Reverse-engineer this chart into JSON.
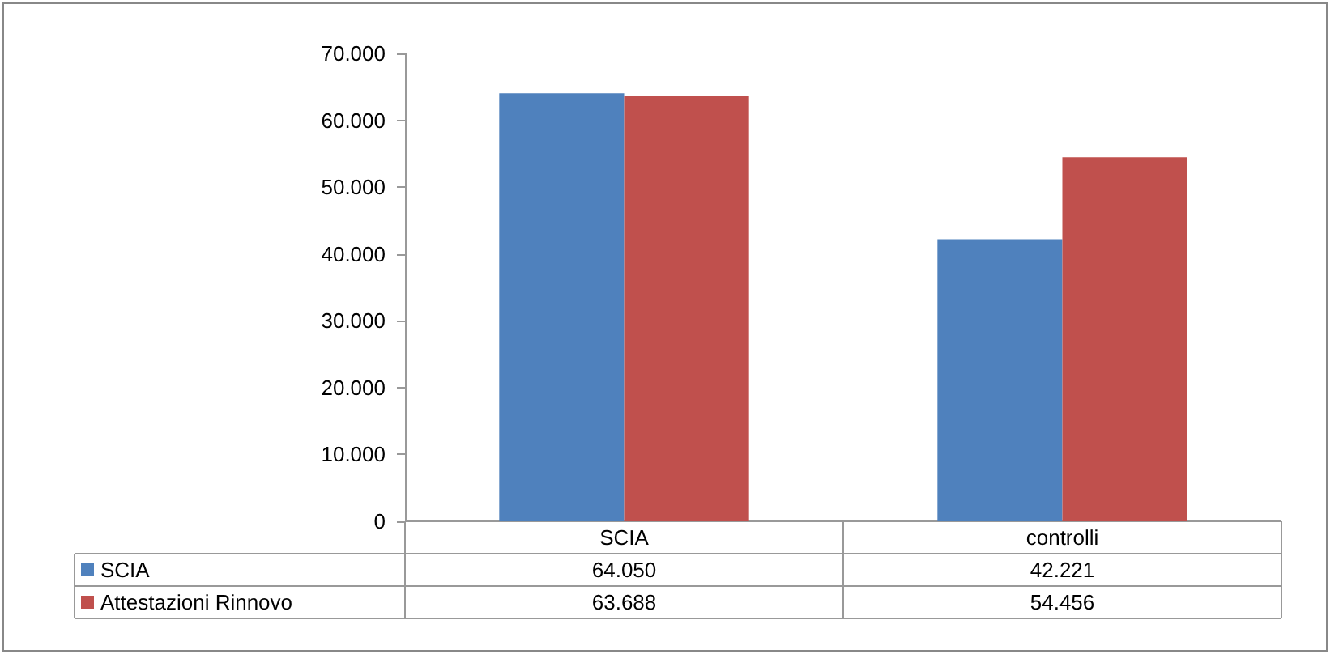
{
  "chart_data": {
    "type": "bar",
    "categories": [
      "SCIA",
      "controlli"
    ],
    "series": [
      {
        "name": "SCIA",
        "color": "#4f81bd",
        "values": [
          64050,
          42221
        ],
        "value_labels": [
          "64.050",
          "42.221"
        ]
      },
      {
        "name": "Attestazioni Rinnovo",
        "color": "#c0504d",
        "values": [
          63688,
          54456
        ],
        "value_labels": [
          "63.688",
          "54.456"
        ]
      }
    ],
    "ylim": [
      0,
      70000
    ],
    "yticks": [
      {
        "value": 0,
        "label": "0"
      },
      {
        "value": 10000,
        "label": "10.000"
      },
      {
        "value": 20000,
        "label": "20.000"
      },
      {
        "value": 30000,
        "label": "30.000"
      },
      {
        "value": 40000,
        "label": "40.000"
      },
      {
        "value": 50000,
        "label": "50.000"
      },
      {
        "value": 60000,
        "label": "60.000"
      },
      {
        "value": 70000,
        "label": "70.000"
      }
    ],
    "grid": false,
    "legend": "bottom left"
  }
}
